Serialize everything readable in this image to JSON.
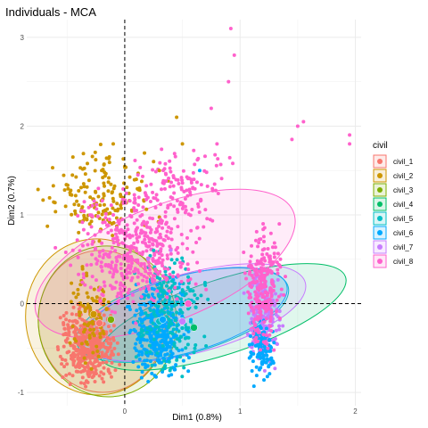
{
  "chart_data": {
    "type": "scatter",
    "title": "Individuals - MCA",
    "xlabel": "Dim1 (0.8%)",
    "ylabel": "Dim2 (0.7%)",
    "xlim": [
      -0.85,
      2.05
    ],
    "ylim": [
      -1.15,
      3.2
    ],
    "x_ticks": [
      0,
      1,
      2
    ],
    "y_ticks": [
      -1,
      0,
      1,
      2,
      3
    ],
    "grid": true,
    "reference_lines": {
      "x": 0,
      "y": 0,
      "style": "dashed"
    },
    "legend": {
      "title": "civil",
      "position": "right"
    },
    "series": [
      {
        "name": "civil_1",
        "color": "#F8766D",
        "centroid": [
          -0.22,
          -0.22
        ],
        "ellipse": {
          "cx": -0.2,
          "cy": -0.2,
          "rx": 0.55,
          "ry": 0.8,
          "angle": -5
        }
      },
      {
        "name": "civil_2",
        "color": "#CD9600",
        "centroid": [
          -0.27,
          -0.12
        ],
        "ellipse": {
          "cx": -0.24,
          "cy": -0.15,
          "rx": 0.62,
          "ry": 0.88,
          "angle": -3
        }
      },
      {
        "name": "civil_3",
        "color": "#7CAE00",
        "centroid": [
          -0.12,
          -0.18
        ],
        "ellipse": {
          "cx": -0.15,
          "cy": -0.2,
          "rx": 0.6,
          "ry": 0.85,
          "angle": -4
        }
      },
      {
        "name": "civil_4",
        "color": "#00BE67",
        "centroid": [
          0.6,
          -0.27
        ],
        "ellipse": {
          "cx": 0.85,
          "cy": -0.15,
          "rx": 1.12,
          "ry": 0.42,
          "angle": -18
        }
      },
      {
        "name": "civil_5",
        "color": "#00BFC4",
        "centroid": [
          0.3,
          -0.2
        ],
        "ellipse": {
          "cx": 0.5,
          "cy": -0.13,
          "rx": 0.95,
          "ry": 0.44,
          "angle": -15
        }
      },
      {
        "name": "civil_6",
        "color": "#00A9FF",
        "centroid": [
          0.33,
          -0.18
        ],
        "ellipse": {
          "cx": 0.52,
          "cy": -0.12,
          "rx": 0.92,
          "ry": 0.43,
          "angle": -16
        }
      },
      {
        "name": "civil_7",
        "color": "#C77CFF",
        "centroid": [
          0.5,
          -0.2
        ],
        "ellipse": {
          "cx": 0.6,
          "cy": -0.1,
          "rx": 1.0,
          "ry": 0.45,
          "angle": -15
        }
      },
      {
        "name": "civil_8",
        "color": "#FF61CC",
        "centroid": [
          0.55,
          0.0
        ],
        "ellipse": {
          "cx": 0.35,
          "cy": 0.45,
          "rx": 1.2,
          "ry": 0.65,
          "angle": -22
        }
      }
    ],
    "clusters": [
      {
        "series": "civil_1",
        "points": [
          [
            -0.3,
            -0.6
          ],
          [
            -0.45,
            -0.2
          ],
          [
            -0.2,
            0.0
          ],
          [
            -0.15,
            -0.5
          ],
          [
            -0.35,
            -0.9
          ],
          [
            -0.25,
            -0.75
          ]
        ]
      },
      {
        "series": "civil_2",
        "points": [
          [
            -0.3,
            1.2
          ],
          [
            -0.2,
            1.5
          ],
          [
            -0.4,
            0.8
          ],
          [
            0.1,
            1.4
          ],
          [
            0.3,
            1.5
          ],
          [
            0.5,
            1.8
          ],
          [
            0.45,
            2.1
          ],
          [
            0.25,
            1.6
          ],
          [
            -0.1,
            1.8
          ]
        ]
      },
      {
        "series": "civil_5",
        "points": [
          [
            0.1,
            -0.6
          ],
          [
            0.3,
            -0.3
          ],
          [
            0.45,
            -0.1
          ],
          [
            0.55,
            0.3
          ],
          [
            0.6,
            -0.55
          ],
          [
            0.35,
            -0.7
          ],
          [
            0.25,
            0.6
          ]
        ]
      },
      {
        "series": "civil_6",
        "points": [
          [
            0.2,
            -0.7
          ],
          [
            0.4,
            -0.4
          ],
          [
            0.5,
            0.1
          ],
          [
            0.15,
            -0.2
          ],
          [
            0.65,
            1.5
          ]
        ]
      },
      {
        "series": "civil_7",
        "points": [
          [
            0.2,
            0.5
          ],
          [
            0.4,
            0.6
          ],
          [
            1.1,
            -0.3
          ],
          [
            1.3,
            0.0
          ]
        ]
      },
      {
        "series": "civil_8",
        "points": [
          [
            0.4,
            0.8
          ],
          [
            0.6,
            1.4
          ],
          [
            0.75,
            2.2
          ],
          [
            0.9,
            2.5
          ],
          [
            0.92,
            3.1
          ],
          [
            0.95,
            2.8
          ],
          [
            0.8,
            1.8
          ],
          [
            1.35,
            0.5
          ],
          [
            1.2,
            0.9
          ],
          [
            1.5,
            2.0
          ],
          [
            1.55,
            2.05
          ],
          [
            1.95,
            1.9
          ],
          [
            1.95,
            1.8
          ],
          [
            1.45,
            1.85
          ],
          [
            0.4,
            1.2
          ],
          [
            0.15,
            1.0
          ],
          [
            -0.05,
            0.9
          ],
          [
            -0.45,
            0.6
          ]
        ]
      }
    ]
  }
}
